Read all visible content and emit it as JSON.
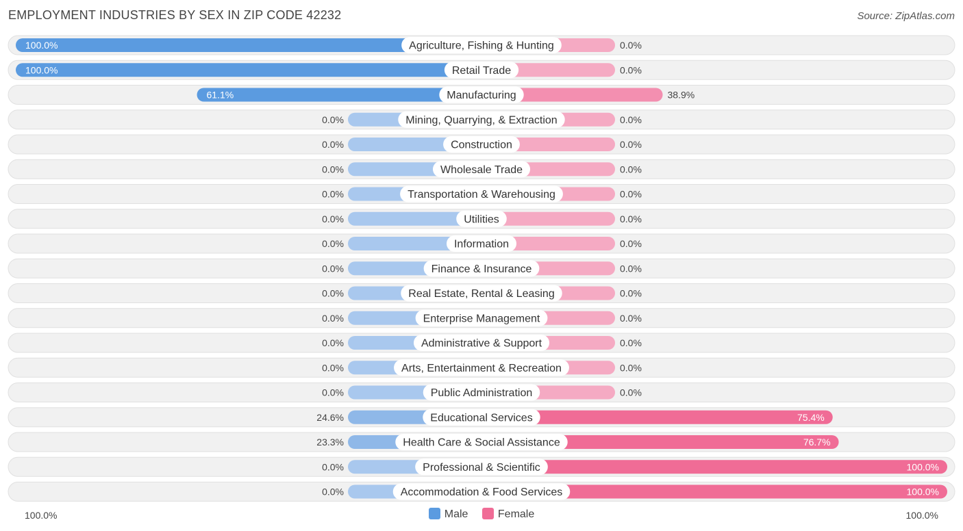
{
  "header": {
    "title": "EMPLOYMENT INDUSTRIES BY SEX IN ZIP CODE 42232",
    "source": "Source: ZipAtlas.com"
  },
  "legend": {
    "male_label": "Male",
    "female_label": "Female"
  },
  "axis": {
    "left_label": "100.0%",
    "right_label": "100.0%"
  },
  "colors": {
    "male_strong": "#5b9be0",
    "male_light": "#a9c8ee",
    "female_strong": "#f06c96",
    "female_light": "#f5aac3",
    "row_bg": "#f1f1f1",
    "row_border": "#e0e0e0"
  },
  "chart_data": {
    "type": "bar",
    "orientation": "horizontal-diverging",
    "title": "EMPLOYMENT INDUSTRIES BY SEX IN ZIP CODE 42232",
    "xlim": [
      -100,
      100
    ],
    "legend_position": "bottom-center",
    "categories": [
      "Agriculture, Fishing & Hunting",
      "Retail Trade",
      "Manufacturing",
      "Mining, Quarrying, & Extraction",
      "Construction",
      "Wholesale Trade",
      "Transportation & Warehousing",
      "Utilities",
      "Information",
      "Finance & Insurance",
      "Real Estate, Rental & Leasing",
      "Enterprise Management",
      "Administrative & Support",
      "Arts, Entertainment & Recreation",
      "Public Administration",
      "Educational Services",
      "Health Care & Social Assistance",
      "Professional & Scientific",
      "Accommodation & Food Services"
    ],
    "series": [
      {
        "name": "Male",
        "values": [
          100.0,
          100.0,
          61.1,
          0.0,
          0.0,
          0.0,
          0.0,
          0.0,
          0.0,
          0.0,
          0.0,
          0.0,
          0.0,
          0.0,
          0.0,
          24.6,
          23.3,
          0.0,
          0.0
        ],
        "labels": [
          "100.0%",
          "100.0%",
          "61.1%",
          "0.0%",
          "0.0%",
          "0.0%",
          "0.0%",
          "0.0%",
          "0.0%",
          "0.0%",
          "0.0%",
          "0.0%",
          "0.0%",
          "0.0%",
          "0.0%",
          "24.6%",
          "23.3%",
          "0.0%",
          "0.0%"
        ]
      },
      {
        "name": "Female",
        "values": [
          0.0,
          0.0,
          38.9,
          0.0,
          0.0,
          0.0,
          0.0,
          0.0,
          0.0,
          0.0,
          0.0,
          0.0,
          0.0,
          0.0,
          0.0,
          75.4,
          76.7,
          100.0,
          100.0
        ],
        "labels": [
          "0.0%",
          "0.0%",
          "38.9%",
          "0.0%",
          "0.0%",
          "0.0%",
          "0.0%",
          "0.0%",
          "0.0%",
          "0.0%",
          "0.0%",
          "0.0%",
          "0.0%",
          "0.0%",
          "0.0%",
          "75.4%",
          "76.7%",
          "100.0%",
          "100.0%"
        ]
      }
    ]
  }
}
